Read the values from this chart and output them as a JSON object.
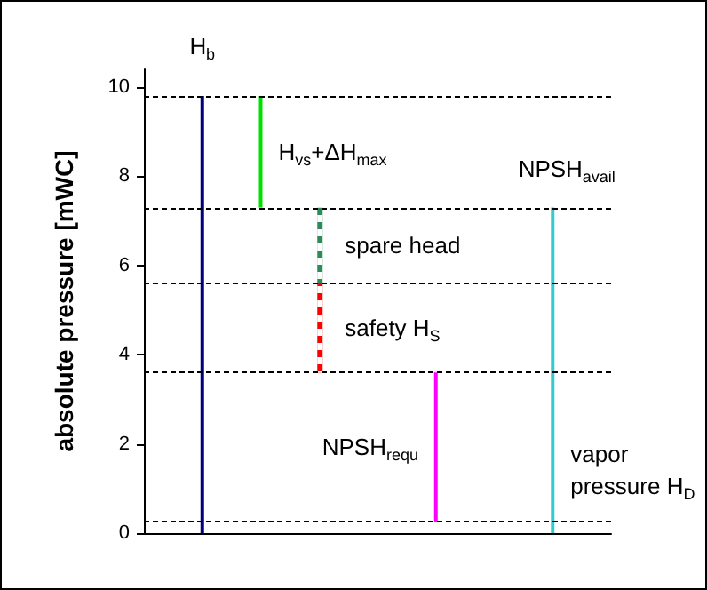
{
  "chart_data": {
    "type": "bar",
    "ylabel": "absolute pressure [mWC]",
    "categories": [
      null,
      null,
      null,
      null,
      null,
      null,
      null,
      null,
      null
    ],
    "ylim": [
      0,
      10.4
    ],
    "yticks": [
      0,
      2,
      4,
      6,
      8,
      10
    ],
    "grid": false,
    "legend": false,
    "series": [
      {
        "name": "H$_{b}$",
        "color": "#000080",
        "values": [
          null,
          9.8,
          null,
          null,
          null,
          null,
          null,
          null,
          null
        ],
        "base": [
          null,
          0,
          null,
          null,
          null,
          null,
          null,
          null,
          null
        ]
      },
      {
        "name": "H$_{vs}$+ΔH$_{max}$",
        "color": "#00e000",
        "values": [
          null,
          null,
          2.5,
          null,
          null,
          null,
          null,
          null,
          null
        ],
        "base": [
          null,
          null,
          7.3,
          null,
          null,
          null,
          null,
          null,
          null
        ]
      },
      {
        "name": "spare head",
        "color": "#2e8b57",
        "line_style": "dashed",
        "values": [
          null,
          null,
          null,
          1.7,
          null,
          null,
          null,
          null,
          null
        ],
        "base": [
          null,
          null,
          null,
          5.6,
          null,
          null,
          null,
          null,
          null
        ]
      },
      {
        "name": "safety H$_{S}$",
        "color": "#ff0000",
        "line_style": "dashed",
        "values": [
          null,
          null,
          null,
          2.0,
          null,
          null,
          null,
          null,
          null
        ],
        "base": [
          null,
          null,
          null,
          3.6,
          null,
          null,
          null,
          null,
          null
        ]
      },
      {
        "name": "NPSH$_{requ}$",
        "color": "#ff00ff",
        "values": [
          null,
          null,
          null,
          null,
          null,
          3.35,
          null,
          null,
          null
        ],
        "base": [
          null,
          null,
          null,
          null,
          null,
          0.25,
          null,
          null,
          null
        ]
      },
      {
        "name": "NPSH$_{avail}$",
        "color": "#33cccc",
        "values": [
          null,
          null,
          null,
          null,
          null,
          null,
          null,
          7.05,
          null
        ],
        "base": [
          null,
          null,
          null,
          null,
          null,
          null,
          null,
          0.25,
          null
        ]
      },
      {
        "name": "vapor\npressure H$_{D}$",
        "color": "#33cccc",
        "values": [
          null,
          null,
          null,
          null,
          null,
          null,
          null,
          0.25,
          null
        ],
        "base": [
          null,
          null,
          null,
          null,
          null,
          null,
          null,
          0,
          null
        ]
      }
    ],
    "ref_lines": [
      {
        "axis": "y",
        "value": 9.8,
        "color": "#000000",
        "line_style": "dashed"
      },
      {
        "axis": "y",
        "value": 7.3,
        "color": "#000000",
        "line_style": "dashed"
      },
      {
        "axis": "y",
        "value": 5.6,
        "color": "#000000",
        "line_style": "dashed"
      },
      {
        "axis": "y",
        "value": 3.6,
        "color": "#000000",
        "line_style": "dashed"
      },
      {
        "axis": "y",
        "value": 0.25,
        "color": "#000000",
        "line_style": "dashed"
      }
    ]
  }
}
